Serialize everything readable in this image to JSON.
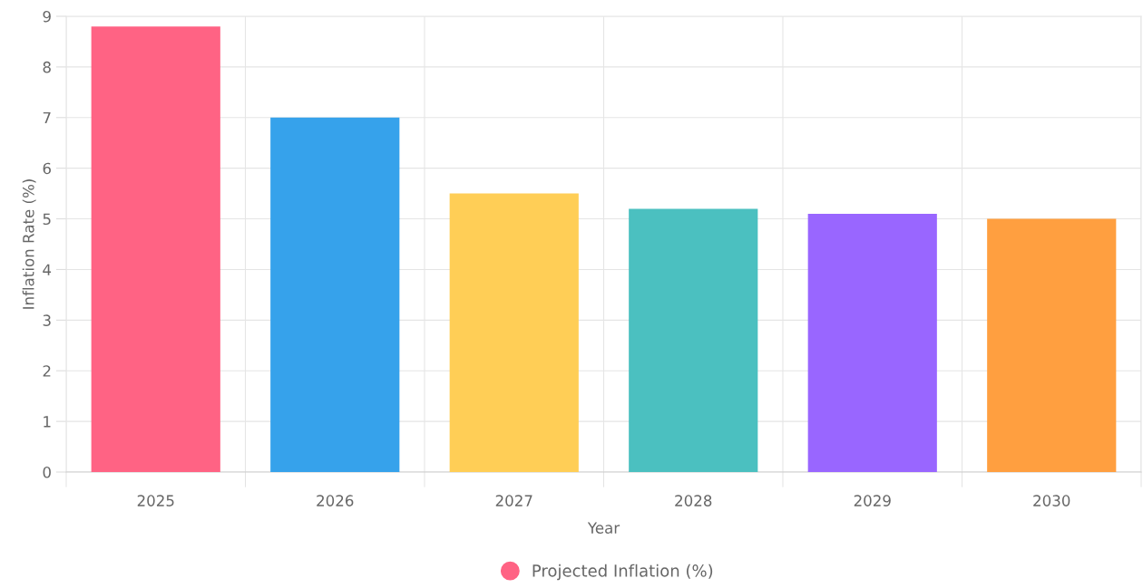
{
  "chart_data": {
    "type": "bar",
    "xlabel": "Year",
    "ylabel": "Inflation Rate (%)",
    "categories": [
      "2025",
      "2026",
      "2027",
      "2028",
      "2029",
      "2030"
    ],
    "series": [
      {
        "name": "Projected Inflation (%)",
        "colors": [
          "#ff6384",
          "#36a2eb",
          "#ffce56",
          "#4bc0c0",
          "#9966ff",
          "#ff9f40"
        ],
        "values": [
          8.8,
          7.0,
          5.5,
          5.2,
          5.1,
          5.0
        ]
      }
    ],
    "ylim": [
      0,
      9
    ],
    "yticks": [
      0,
      1,
      2,
      3,
      4,
      5,
      6,
      7,
      8,
      9
    ],
    "grid": true,
    "legend": "bottom"
  }
}
